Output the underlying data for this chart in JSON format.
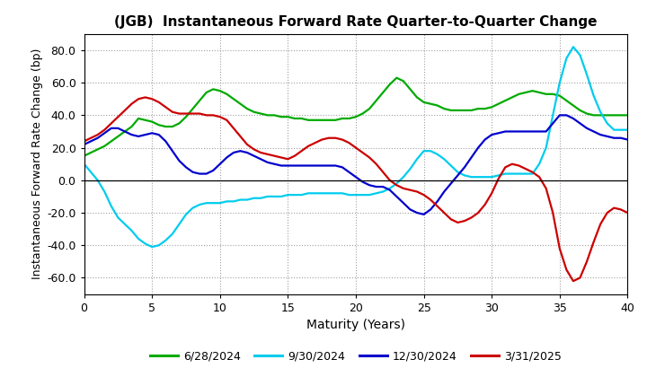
{
  "title": "(JGB)  Instantaneous Forward Rate Quarter-to-Quarter Change",
  "xlabel": "Maturity (Years)",
  "ylabel": "Instantaneous Forward Rate Change (bp)",
  "xlim": [
    0,
    40
  ],
  "ylim": [
    -70,
    90
  ],
  "yticks": [
    -60,
    -40,
    -20,
    0,
    20,
    40,
    60,
    80
  ],
  "xticks": [
    0,
    5,
    10,
    15,
    20,
    25,
    30,
    35,
    40
  ],
  "series": {
    "6/28/2024": {
      "color": "#00aa00",
      "x": [
        0,
        0.5,
        1,
        1.5,
        2,
        2.5,
        3,
        3.5,
        4,
        4.5,
        5,
        5.5,
        6,
        6.5,
        7,
        7.5,
        8,
        8.5,
        9,
        9.5,
        10,
        10.5,
        11,
        11.5,
        12,
        12.5,
        13,
        13.5,
        14,
        14.5,
        15,
        15.5,
        16,
        16.5,
        17,
        17.5,
        18,
        18.5,
        19,
        19.5,
        20,
        20.5,
        21,
        21.5,
        22,
        22.5,
        23,
        23.5,
        24,
        24.5,
        25,
        25.5,
        26,
        26.5,
        27,
        27.5,
        28,
        28.5,
        29,
        29.5,
        30,
        30.5,
        31,
        31.5,
        32,
        32.5,
        33,
        33.5,
        34,
        34.5,
        35,
        35.5,
        36,
        36.5,
        37,
        37.5,
        38,
        38.5,
        39,
        39.5,
        40
      ],
      "y": [
        15,
        17,
        19,
        21,
        24,
        27,
        30,
        33,
        38,
        37,
        36,
        34,
        33,
        33,
        35,
        39,
        44,
        49,
        54,
        56,
        55,
        53,
        50,
        47,
        44,
        42,
        41,
        40,
        40,
        39,
        39,
        38,
        38,
        37,
        37,
        37,
        37,
        37,
        38,
        38,
        39,
        41,
        44,
        49,
        54,
        59,
        63,
        61,
        56,
        51,
        48,
        47,
        46,
        44,
        43,
        43,
        43,
        43,
        44,
        44,
        45,
        47,
        49,
        51,
        53,
        54,
        55,
        54,
        53,
        53,
        52,
        49,
        46,
        43,
        41,
        40,
        40,
        40,
        40,
        40,
        40
      ]
    },
    "9/30/2024": {
      "color": "#00ccee",
      "x": [
        0,
        0.5,
        1,
        1.5,
        2,
        2.5,
        3,
        3.5,
        4,
        4.5,
        5,
        5.5,
        6,
        6.5,
        7,
        7.5,
        8,
        8.5,
        9,
        9.5,
        10,
        10.5,
        11,
        11.5,
        12,
        12.5,
        13,
        13.5,
        14,
        14.5,
        15,
        15.5,
        16,
        16.5,
        17,
        17.5,
        18,
        18.5,
        19,
        19.5,
        20,
        20.5,
        21,
        21.5,
        22,
        22.5,
        23,
        23.5,
        24,
        24.5,
        25,
        25.5,
        26,
        26.5,
        27,
        27.5,
        28,
        28.5,
        29,
        29.5,
        30,
        30.5,
        31,
        31.5,
        32,
        32.5,
        33,
        33.5,
        34,
        34.5,
        35,
        35.5,
        36,
        36.5,
        37,
        37.5,
        38,
        38.5,
        39,
        39.5,
        40
      ],
      "y": [
        10,
        5,
        0,
        -7,
        -16,
        -23,
        -27,
        -31,
        -36,
        -39,
        -41,
        -40,
        -37,
        -33,
        -27,
        -21,
        -17,
        -15,
        -14,
        -14,
        -14,
        -13,
        -13,
        -12,
        -12,
        -11,
        -11,
        -10,
        -10,
        -10,
        -9,
        -9,
        -9,
        -8,
        -8,
        -8,
        -8,
        -8,
        -8,
        -9,
        -9,
        -9,
        -9,
        -8,
        -7,
        -5,
        -2,
        2,
        7,
        13,
        18,
        18,
        16,
        13,
        9,
        5,
        3,
        2,
        2,
        2,
        2,
        3,
        4,
        4,
        4,
        4,
        4,
        10,
        20,
        40,
        60,
        75,
        82,
        77,
        65,
        52,
        42,
        35,
        31,
        31,
        31
      ]
    },
    "12/30/2024": {
      "color": "#0000cc",
      "x": [
        0,
        0.5,
        1,
        1.5,
        2,
        2.5,
        3,
        3.5,
        4,
        4.5,
        5,
        5.5,
        6,
        6.5,
        7,
        7.5,
        8,
        8.5,
        9,
        9.5,
        10,
        10.5,
        11,
        11.5,
        12,
        12.5,
        13,
        13.5,
        14,
        14.5,
        15,
        15.5,
        16,
        16.5,
        17,
        17.5,
        18,
        18.5,
        19,
        19.5,
        20,
        20.5,
        21,
        21.5,
        22,
        22.5,
        23,
        23.5,
        24,
        24.5,
        25,
        25.5,
        26,
        26.5,
        27,
        27.5,
        28,
        28.5,
        29,
        29.5,
        30,
        30.5,
        31,
        31.5,
        32,
        32.5,
        33,
        33.5,
        34,
        34.5,
        35,
        35.5,
        36,
        36.5,
        37,
        37.5,
        38,
        38.5,
        39,
        39.5,
        40
      ],
      "y": [
        22,
        24,
        26,
        29,
        32,
        32,
        30,
        28,
        27,
        28,
        29,
        28,
        24,
        18,
        12,
        8,
        5,
        4,
        4,
        6,
        10,
        14,
        17,
        18,
        17,
        15,
        13,
        11,
        10,
        9,
        9,
        9,
        9,
        9,
        9,
        9,
        9,
        9,
        8,
        5,
        2,
        -1,
        -3,
        -4,
        -4,
        -6,
        -10,
        -14,
        -18,
        -20,
        -21,
        -18,
        -13,
        -7,
        -2,
        3,
        8,
        14,
        20,
        25,
        28,
        29,
        30,
        30,
        30,
        30,
        30,
        30,
        30,
        35,
        40,
        40,
        38,
        35,
        32,
        30,
        28,
        27,
        26,
        26,
        25
      ]
    },
    "3/31/2025": {
      "color": "#cc0000",
      "x": [
        0,
        0.5,
        1,
        1.5,
        2,
        2.5,
        3,
        3.5,
        4,
        4.5,
        5,
        5.5,
        6,
        6.5,
        7,
        7.5,
        8,
        8.5,
        9,
        9.5,
        10,
        10.5,
        11,
        11.5,
        12,
        12.5,
        13,
        13.5,
        14,
        14.5,
        15,
        15.5,
        16,
        16.5,
        17,
        17.5,
        18,
        18.5,
        19,
        19.5,
        20,
        20.5,
        21,
        21.5,
        22,
        22.5,
        23,
        23.5,
        24,
        24.5,
        25,
        25.5,
        26,
        26.5,
        27,
        27.5,
        28,
        28.5,
        29,
        29.5,
        30,
        30.5,
        31,
        31.5,
        32,
        32.5,
        33,
        33.5,
        34,
        34.5,
        35,
        35.5,
        36,
        36.5,
        37,
        37.5,
        38,
        38.5,
        39,
        39.5,
        40
      ],
      "y": [
        24,
        26,
        28,
        31,
        35,
        39,
        43,
        47,
        50,
        51,
        50,
        48,
        45,
        42,
        41,
        41,
        41,
        41,
        40,
        40,
        39,
        37,
        32,
        27,
        22,
        19,
        17,
        16,
        15,
        14,
        13,
        15,
        18,
        21,
        23,
        25,
        26,
        26,
        25,
        23,
        20,
        17,
        14,
        10,
        5,
        0,
        -3,
        -5,
        -6,
        -7,
        -9,
        -12,
        -16,
        -20,
        -24,
        -26,
        -25,
        -23,
        -20,
        -15,
        -8,
        1,
        8,
        10,
        9,
        7,
        5,
        2,
        -5,
        -20,
        -42,
        -55,
        -62,
        -60,
        -50,
        -38,
        -27,
        -20,
        -17,
        -18,
        -20
      ]
    }
  },
  "legend_labels": [
    "6/28/2024",
    "9/30/2024",
    "12/30/2024",
    "3/31/2025"
  ],
  "legend_colors": [
    "#00aa00",
    "#00ccee",
    "#0000cc",
    "#cc0000"
  ],
  "background_color": "#ffffff",
  "grid_color": "#888888",
  "linewidth": 1.6
}
